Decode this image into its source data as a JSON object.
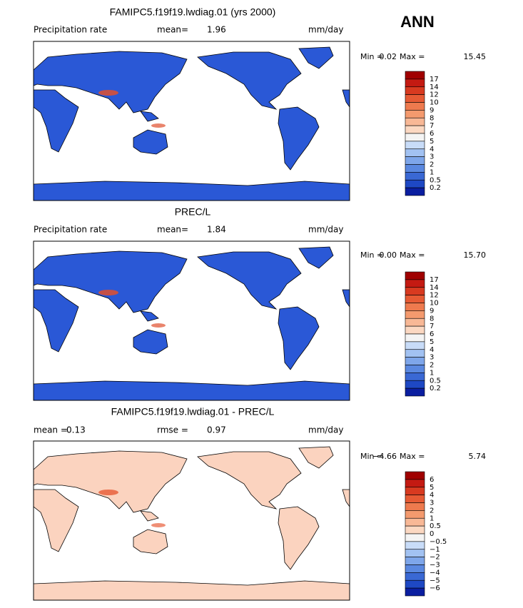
{
  "season": "ANN",
  "panels": [
    {
      "title": "FAMIPC5.f19f19.lwdiag.01 (yrs 2000)",
      "header": [
        "Precipitation rate",
        "mean=",
        "1.96",
        "mm/day"
      ],
      "min_label": "Min =",
      "min": "0.02",
      "max_label": "Max =",
      "max": "15.45",
      "colorbar": {
        "labels": [
          "17",
          "14",
          "12",
          "10",
          "9",
          "8",
          "7",
          "6",
          "5",
          "4",
          "3",
          "2",
          "1",
          "0.5",
          "0.2"
        ],
        "colors": [
          "#a00000",
          "#c41a12",
          "#d83a20",
          "#e65a34",
          "#ee7a4e",
          "#f49a6e",
          "#f8b896",
          "#fbd8c2",
          "#f4f4f4",
          "#c8dcf8",
          "#a2c2f2",
          "#7ea6ea",
          "#5a88e0",
          "#3a68d4",
          "#1e48c4",
          "#0a1ea0"
        ]
      }
    },
    {
      "title": "PREC/L",
      "header": [
        "Precipitation rate",
        "mean=",
        "1.84",
        "mm/day"
      ],
      "min_label": "Min =",
      "min": "0.00",
      "max_label": "Max =",
      "max": "15.70",
      "colorbar": {
        "labels": [
          "17",
          "14",
          "12",
          "10",
          "9",
          "8",
          "7",
          "6",
          "5",
          "4",
          "3",
          "2",
          "1",
          "0.5",
          "0.2"
        ],
        "colors": [
          "#a00000",
          "#c41a12",
          "#d83a20",
          "#e65a34",
          "#ee7a4e",
          "#f49a6e",
          "#f8b896",
          "#fbd8c2",
          "#f4f4f4",
          "#c8dcf8",
          "#a2c2f2",
          "#7ea6ea",
          "#5a88e0",
          "#3a68d4",
          "#1e48c4",
          "#0a1ea0"
        ]
      }
    },
    {
      "title": "FAMIPC5.f19f19.lwdiag.01 - PREC/L",
      "header": [
        "mean =",
        "0.13",
        "rmse =",
        "0.97",
        "mm/day"
      ],
      "min_label": "Min =",
      "min": "−4.66",
      "max_label": "Max =",
      "max": "5.74",
      "colorbar": {
        "labels": [
          "6",
          "5",
          "4",
          "3",
          "2",
          "1",
          "0.5",
          "0",
          "−0.5",
          "−1",
          "−2",
          "−3",
          "−4",
          "−5",
          "−6"
        ],
        "colors": [
          "#a00000",
          "#c41a12",
          "#d83a20",
          "#e65a34",
          "#ee7a4e",
          "#f49a6e",
          "#f8b896",
          "#fbd8c2",
          "#f4f4f4",
          "#c8dcf8",
          "#a2c2f2",
          "#7ea6ea",
          "#5a88e0",
          "#3a68d4",
          "#1e48c4",
          "#0a1ea0"
        ]
      }
    }
  ]
}
